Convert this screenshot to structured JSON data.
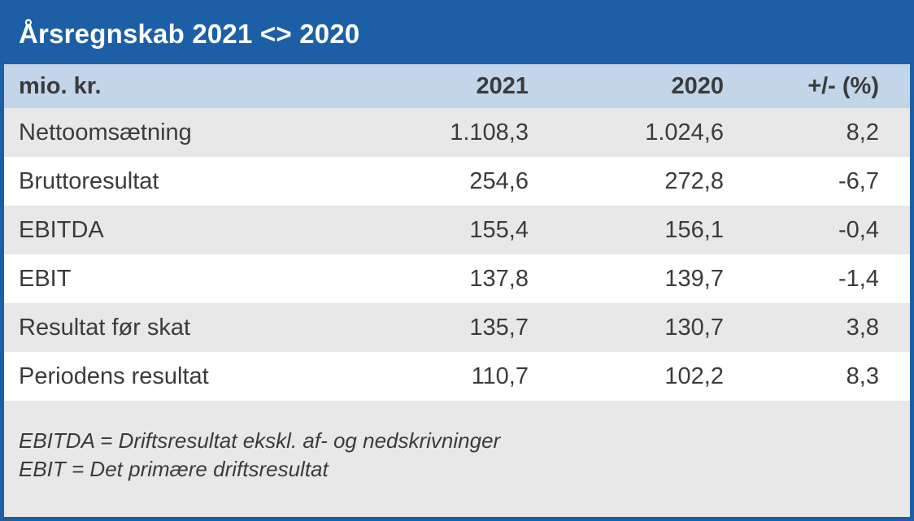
{
  "header": {
    "title": "Årsregnskab 2021 <> 2020"
  },
  "colors": {
    "accent_blue": "#1D5FA6",
    "header_row_bg": "#C3D5E8",
    "alt_row_bg": "#E8E8E8",
    "text": "#3B3B3B"
  },
  "chart_data": {
    "type": "table",
    "title": "Årsregnskab 2021 <> 2020",
    "columns": [
      "mio. kr.",
      "2021",
      "2020",
      "+/- (%)"
    ],
    "rows": [
      [
        "Nettoomsætning",
        "1.108,3",
        "1.024,6",
        "8,2"
      ],
      [
        "Bruttoresultat",
        "254,6",
        "272,8",
        "-6,7"
      ],
      [
        "EBITDA",
        "155,4",
        "156,1",
        "-0,4"
      ],
      [
        "EBIT",
        "137,8",
        "139,7",
        "-1,4"
      ],
      [
        "Resultat før skat",
        "135,7",
        "130,7",
        "3,8"
      ],
      [
        "Periodens resultat",
        "110,7",
        "102,2",
        "8,3"
      ]
    ],
    "footnotes": [
      "EBITDA = Driftsresultat ekskl. af- og nedskrivninger",
      "EBIT = Det primære driftsresultat"
    ],
    "layout_hints": {
      "row_striping": "alternating gray/white starting gray",
      "numeric_alignment": "right"
    }
  }
}
